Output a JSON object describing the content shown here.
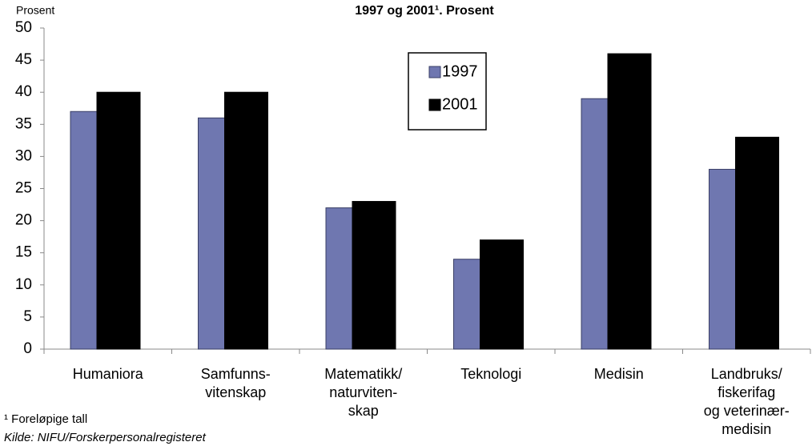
{
  "chart_data": {
    "type": "bar",
    "title": "1997 og 2001¹. Prosent",
    "y_axis_label": "Prosent",
    "categories": [
      [
        "Humaniora"
      ],
      [
        "Samfunns-",
        "vitenskap"
      ],
      [
        "Matematikk/",
        "naturviten-",
        "skap"
      ],
      [
        "Teknologi"
      ],
      [
        "Medisin"
      ],
      [
        "Landbruks/",
        "fiskerifag",
        "og veterinær-",
        "medisin"
      ]
    ],
    "series": [
      {
        "name": "1997",
        "color": "#6f77b0",
        "values": [
          37,
          36,
          22,
          14,
          39,
          28
        ]
      },
      {
        "name": "2001",
        "color": "#000000",
        "values": [
          40,
          40,
          23,
          17,
          46,
          33
        ]
      }
    ],
    "ylim": [
      0,
      50
    ],
    "yticks": [
      0,
      5,
      10,
      15,
      20,
      25,
      30,
      35,
      40,
      45,
      50
    ],
    "grid": false,
    "legend": "top-center",
    "footnotes": [
      "¹ Foreløpige tall",
      "Kilde: NIFU/Forskerpersonalregisteret"
    ]
  }
}
